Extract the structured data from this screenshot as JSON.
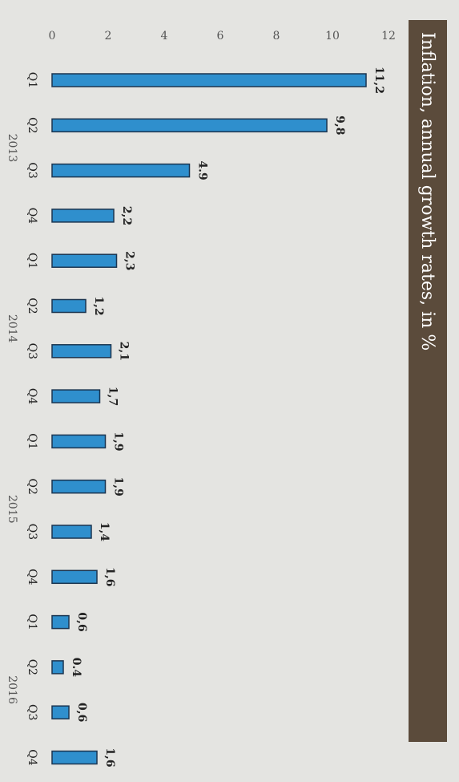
{
  "chart_data": {
    "type": "bar",
    "title": "Inflation, annual growth rates, in %",
    "categories": [
      "Q1",
      "Q2",
      "Q3",
      "Q4",
      "Q1",
      "Q2",
      "Q3",
      "Q4",
      "Q1",
      "Q2",
      "Q3",
      "Q4",
      "Q1",
      "Q2",
      "Q3",
      "Q4"
    ],
    "category_groups": [
      "2013",
      "2014",
      "2015",
      "2016"
    ],
    "values": [
      11.2,
      9.8,
      4.9,
      2.2,
      2.3,
      1.2,
      2.1,
      1.7,
      1.9,
      1.9,
      1.4,
      1.6,
      0.6,
      0.4,
      0.6,
      1.6
    ],
    "value_labels": [
      "11,2",
      "9,8",
      "4.9",
      "2,2",
      "2,3",
      "1,2",
      "2,1",
      "1,7",
      "1,9",
      "1,9",
      "1,4",
      "1,6",
      "0,6",
      "0.4",
      "0,6",
      "1,6"
    ],
    "color": "#2f8fcd",
    "ylim": [
      0,
      12
    ],
    "yticks": [
      0,
      2,
      4,
      6,
      8,
      10,
      12
    ],
    "grid": false
  }
}
